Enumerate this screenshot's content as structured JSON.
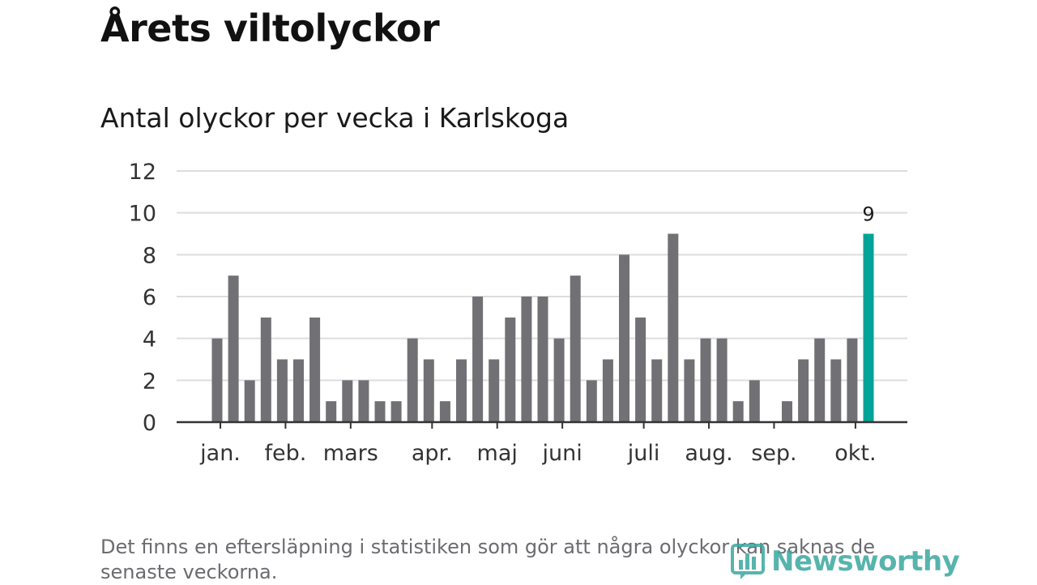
{
  "header": {
    "title": "Årets viltolyckor",
    "subtitle": "Antal olyckor per vecka i Karlskoga"
  },
  "footer": {
    "note": "Det finns en eftersläpning i statistiken som gör att några olyckor kan saknas de senaste veckorna.",
    "brand": "Newsworthy"
  },
  "colors": {
    "bar": "#717075",
    "highlight": "#00a398",
    "grid": "#dddddd",
    "axis": "#333333",
    "brand": "#3aa79f"
  },
  "chart_data": {
    "type": "bar",
    "title": "Antal olyckor per vecka i Karlskoga",
    "xlabel": "",
    "ylabel": "",
    "ylim": [
      0,
      12
    ],
    "yticks": [
      0,
      2,
      4,
      6,
      8,
      10,
      12
    ],
    "grid": true,
    "month_labels": [
      "jan.",
      "feb.",
      "mars",
      "apr.",
      "maj",
      "juni",
      "juli",
      "aug.",
      "sep.",
      "okt."
    ],
    "month_week_index": [
      0.2,
      4.2,
      8.2,
      13.2,
      17.2,
      21.2,
      26.2,
      30.2,
      34.2,
      39.2
    ],
    "values": [
      4,
      7,
      2,
      5,
      3,
      3,
      5,
      1,
      2,
      2,
      1,
      1,
      4,
      3,
      1,
      3,
      6,
      3,
      5,
      6,
      6,
      4,
      7,
      2,
      3,
      8,
      5,
      3,
      9,
      3,
      4,
      4,
      1,
      2,
      0,
      1,
      3,
      4,
      3,
      4,
      9
    ],
    "highlight_index": 40,
    "highlight_label": "9"
  }
}
